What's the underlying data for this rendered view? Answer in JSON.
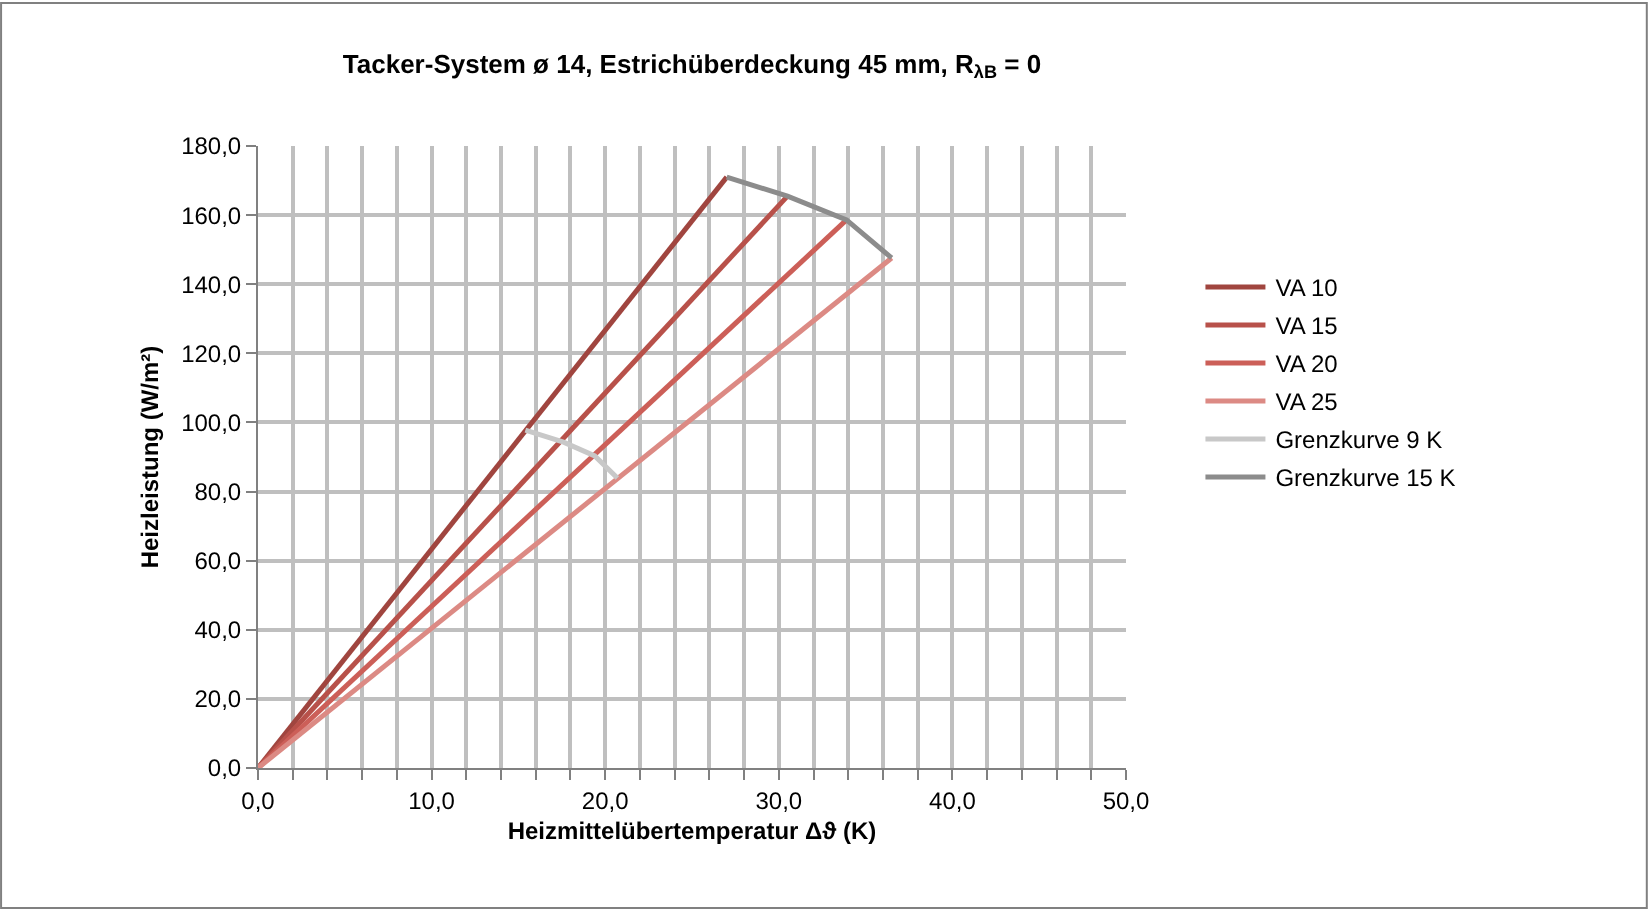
{
  "chart_data": {
    "type": "line",
    "title": "Tacker-System ø 14, Estrichüberdeckung 45 mm, R$_{λB}$ = 0",
    "xlabel": "Heizmittelübertemperatur Δϑ (K)",
    "ylabel": "Heizleistung (W/m²)",
    "series": [
      {
        "name": "VA 10",
        "color": "#a0453f",
        "x": [
          0,
          27.0
        ],
        "values": [
          0,
          171
        ]
      },
      {
        "name": "VA 15",
        "color": "#b8514a",
        "x": [
          0,
          30.5
        ],
        "values": [
          0,
          165.5
        ]
      },
      {
        "name": "VA 20",
        "color": "#cc5f58",
        "x": [
          0,
          33.9
        ],
        "values": [
          0,
          158.6
        ]
      },
      {
        "name": "VA 25",
        "color": "#dc8a84",
        "x": [
          0,
          36.5
        ],
        "values": [
          0,
          147.6
        ]
      },
      {
        "name": "Grenzkurve 9 K",
        "color": "#c8c8c8",
        "x": [
          15.4,
          17.6,
          19.4,
          20.7
        ],
        "values": [
          97.8,
          94.3,
          90.3,
          83.9
        ]
      },
      {
        "name": "Grenzkurve 15 K",
        "color": "#8c8c8c",
        "x": [
          27.0,
          30.5,
          33.9,
          36.5
        ],
        "values": [
          171,
          165.5,
          158.6,
          147.6
        ]
      }
    ],
    "xlim": [
      0,
      50
    ],
    "xticks": [
      {
        "value": 0,
        "label": "0,0"
      },
      {
        "value": 2,
        "label": null
      },
      {
        "value": 4,
        "label": null
      },
      {
        "value": 6,
        "label": null
      },
      {
        "value": 8,
        "label": null
      },
      {
        "value": 10,
        "label": "10,0"
      },
      {
        "value": 12,
        "label": null
      },
      {
        "value": 14,
        "label": null
      },
      {
        "value": 16,
        "label": null
      },
      {
        "value": 18,
        "label": null
      },
      {
        "value": 20,
        "label": "20,0"
      },
      {
        "value": 22,
        "label": null
      },
      {
        "value": 24,
        "label": null
      },
      {
        "value": 26,
        "label": null
      },
      {
        "value": 28,
        "label": null
      },
      {
        "value": 30,
        "label": "30,0"
      },
      {
        "value": 32,
        "label": null
      },
      {
        "value": 34,
        "label": null
      },
      {
        "value": 36,
        "label": null
      },
      {
        "value": 38,
        "label": null
      },
      {
        "value": 40,
        "label": "40,0"
      },
      {
        "value": 42,
        "label": null
      },
      {
        "value": 44,
        "label": null
      },
      {
        "value": 46,
        "label": null
      },
      {
        "value": 48,
        "label": null
      },
      {
        "value": 50,
        "label": "50,0"
      }
    ],
    "ylim": [
      0,
      180
    ],
    "yticks": [
      {
        "value": 0,
        "label": "0,0"
      },
      {
        "value": 20,
        "label": "20,0"
      },
      {
        "value": 40,
        "label": "40,0"
      },
      {
        "value": 60,
        "label": "60,0"
      },
      {
        "value": 80,
        "label": "80,0"
      },
      {
        "value": 100,
        "label": "100,0"
      },
      {
        "value": 120,
        "label": "120,0"
      },
      {
        "value": 140,
        "label": "140,0"
      },
      {
        "value": 160,
        "label": "160,0"
      },
      {
        "value": 180,
        "label": "180,0"
      }
    ],
    "grid": true,
    "legend": "right",
    "marker": "none",
    "line_style": "solid"
  }
}
